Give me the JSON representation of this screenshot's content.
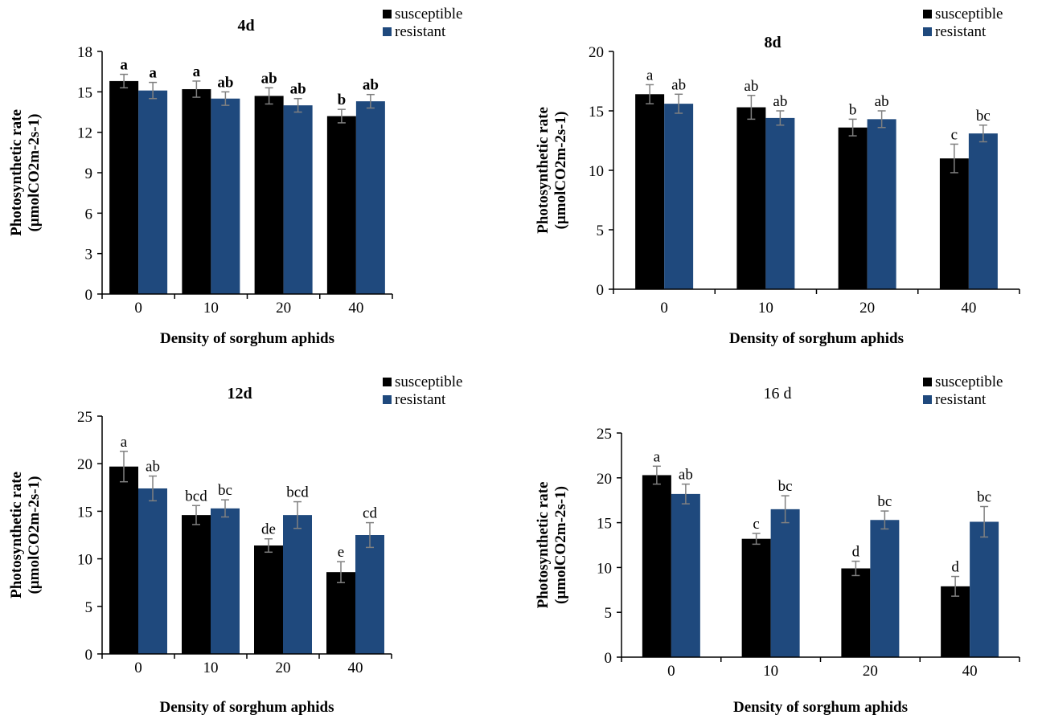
{
  "chart_data": [
    {
      "type": "bar",
      "title": "4d",
      "title_bold": true,
      "labels_bold": true,
      "xlabel": "Density of  sorghum aphids",
      "ylabel_line1": "Photosynthetic rate",
      "ylabel_line2": "(μmolCO2m-2s-1)",
      "categories": [
        "0",
        "10",
        "20",
        "40"
      ],
      "ylim": [
        0,
        18
      ],
      "yticks": [
        0,
        3,
        6,
        9,
        12,
        15,
        18
      ],
      "legend_position": "top-right",
      "series": [
        {
          "name": "susceptible",
          "color": "#000000",
          "values": [
            15.8,
            15.2,
            14.7,
            13.2
          ],
          "errors": [
            0.5,
            0.6,
            0.6,
            0.5
          ],
          "labels": [
            "a",
            "a",
            "ab",
            "b"
          ]
        },
        {
          "name": "resistant",
          "color": "#1f497d",
          "values": [
            15.1,
            14.5,
            14.0,
            14.3
          ],
          "errors": [
            0.6,
            0.5,
            0.5,
            0.5
          ],
          "labels": [
            "a",
            "ab",
            "ab",
            "ab"
          ]
        }
      ]
    },
    {
      "type": "bar",
      "title": "8d",
      "title_bold": true,
      "labels_bold": false,
      "xlabel": "Density of  sorghum aphids",
      "ylabel_line1": "Photosynthetic rate",
      "ylabel_line2": "(μmolCO2m-2s-1)",
      "categories": [
        "0",
        "10",
        "20",
        "40"
      ],
      "ylim": [
        0,
        20
      ],
      "yticks": [
        0,
        5,
        10,
        15,
        20
      ],
      "legend_position": "top-right",
      "series": [
        {
          "name": "susceptible",
          "color": "#000000",
          "values": [
            16.4,
            15.3,
            13.6,
            11.0
          ],
          "errors": [
            0.8,
            1.0,
            0.7,
            1.2
          ],
          "labels": [
            "a",
            "ab",
            "b",
            "c"
          ]
        },
        {
          "name": "resistant",
          "color": "#1f497d",
          "values": [
            15.6,
            14.4,
            14.3,
            13.1
          ],
          "errors": [
            0.8,
            0.6,
            0.7,
            0.7
          ],
          "labels": [
            "ab",
            "ab",
            "ab",
            "bc"
          ]
        }
      ]
    },
    {
      "type": "bar",
      "title": "12d",
      "title_bold": true,
      "labels_bold": false,
      "xlabel": "Density of  sorghum aphids",
      "ylabel_line1": "Photosynthetic rate",
      "ylabel_line2": "(μmolCO2m-2s-1)",
      "categories": [
        "0",
        "10",
        "20",
        "40"
      ],
      "ylim": [
        0,
        25
      ],
      "yticks": [
        0,
        5,
        10,
        15,
        20,
        25
      ],
      "legend_position": "top-right",
      "series": [
        {
          "name": "susceptible",
          "color": "#000000",
          "values": [
            19.7,
            14.6,
            11.4,
            8.6
          ],
          "errors": [
            1.6,
            1.0,
            0.7,
            1.1
          ],
          "labels": [
            "a",
            "bcd",
            "de",
            "e"
          ]
        },
        {
          "name": "resistant",
          "color": "#1f497d",
          "values": [
            17.4,
            15.3,
            14.6,
            12.5
          ],
          "errors": [
            1.3,
            0.9,
            1.4,
            1.3
          ],
          "labels": [
            "ab",
            "bc",
            "bcd",
            "cd"
          ]
        }
      ]
    },
    {
      "type": "bar",
      "title": "16 d",
      "title_bold": false,
      "labels_bold": false,
      "xlabel": "Density of  sorghum aphids",
      "ylabel_line1": "Photosynthetic rate",
      "ylabel_line2": "(μmolCO2m-2s-1)",
      "categories": [
        "0",
        "10",
        "20",
        "40"
      ],
      "ylim": [
        0,
        25
      ],
      "yticks": [
        0,
        5,
        10,
        15,
        20,
        25
      ],
      "legend_position": "top-right",
      "series": [
        {
          "name": "susceptible",
          "color": "#000000",
          "values": [
            20.3,
            13.2,
            9.9,
            7.9
          ],
          "errors": [
            1.0,
            0.6,
            0.8,
            1.1
          ],
          "labels": [
            "a",
            "c",
            "d",
            "d"
          ]
        },
        {
          "name": "resistant",
          "color": "#1f497d",
          "values": [
            18.2,
            16.5,
            15.3,
            15.1
          ],
          "errors": [
            1.1,
            1.5,
            1.0,
            1.7
          ],
          "labels": [
            "ab",
            "bc",
            "bc",
            "bc"
          ]
        }
      ]
    }
  ]
}
